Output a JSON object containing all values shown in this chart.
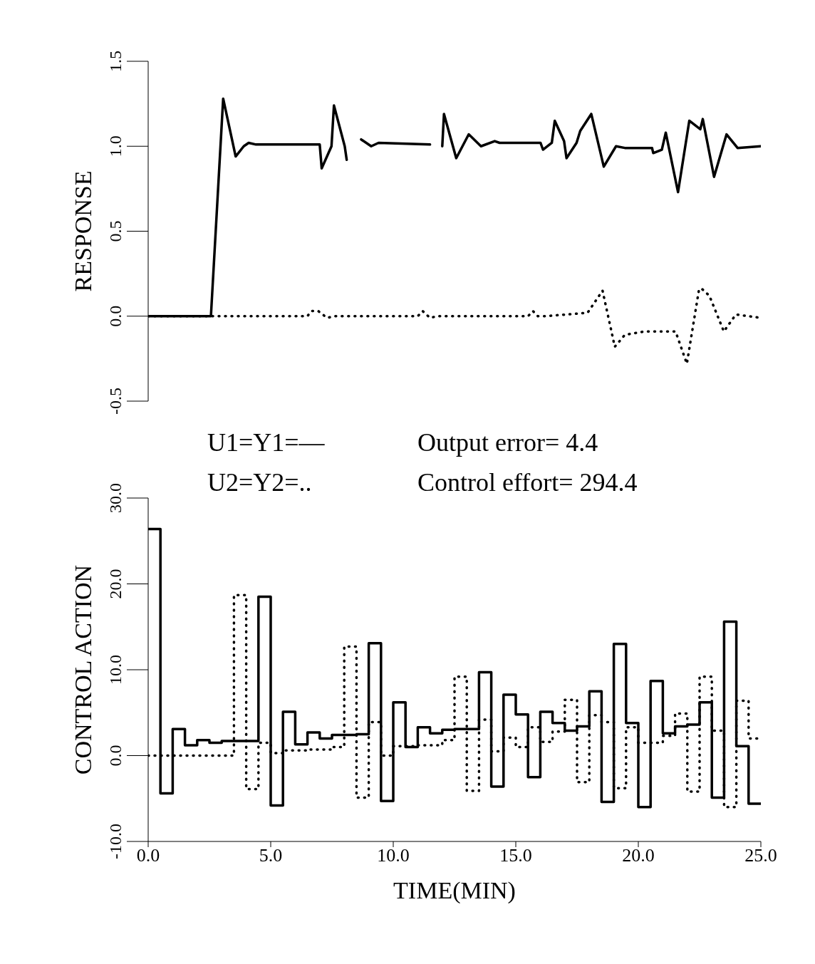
{
  "chart_data": [
    {
      "type": "line",
      "ylabel": "RESPONSE",
      "xlim": [
        0,
        25
      ],
      "ylim": [
        -0.5,
        1.5
      ],
      "yticks": [
        {
          "value": -0.5,
          "label": "-0.5"
        },
        {
          "value": 0,
          "label": "0.0"
        },
        {
          "value": 0.5,
          "label": "0.5"
        },
        {
          "value": 1,
          "label": "1.0"
        },
        {
          "value": 1.5,
          "label": "1.5"
        }
      ],
      "tick_labels": "y",
      "marker": "none",
      "series": [
        {
          "color": "#000000",
          "line_style": "solid",
          "x": [
            0,
            2.56,
            3.06,
            3.57,
            3.9,
            4.1,
            4.4,
            7.0,
            7.08,
            7.48,
            7.58,
            8.02,
            8.1,
            8.4,
            8.69,
            9.1,
            9.4,
            11.5,
            11.8,
            12.0,
            12.07,
            12.57,
            13.08,
            13.58,
            14.14,
            14.34,
            16.01,
            16.11,
            16.47,
            16.59,
            16.97,
            17.07,
            17.48,
            17.63,
            18.08,
            18.59,
            19.09,
            19.45,
            20.56,
            20.61,
            20.96,
            21.12,
            21.62,
            22.08,
            22.53,
            22.63,
            23.09,
            23.6,
            24.05,
            25.0
          ],
          "values": [
            0,
            0,
            1.28,
            0.94,
            1.0,
            1.02,
            1.01,
            1.01,
            0.87,
            1.0,
            1.24,
            1.0,
            0.92,
            null,
            1.04,
            1.0,
            1.02,
            1.01,
            null,
            1.0,
            1.19,
            0.93,
            1.07,
            1.0,
            1.03,
            1.02,
            1.02,
            0.98,
            1.02,
            1.15,
            1.03,
            0.93,
            1.02,
            1.09,
            1.19,
            0.88,
            1.0,
            0.99,
            0.99,
            0.96,
            0.98,
            1.08,
            0.73,
            1.15,
            1.1,
            1.16,
            0.82,
            1.07,
            0.99,
            1.0
          ]
        },
        {
          "color": "#000000",
          "line_style": "dotted",
          "x": [
            0,
            6.5,
            6.65,
            6.94,
            7.3,
            7.6,
            11.0,
            11.2,
            11.5,
            11.8,
            15.5,
            15.7,
            15.9,
            16.2,
            17.93,
            18.54,
            19.04,
            19.45,
            20.26,
            21.52,
            21.98,
            22.48,
            22.6,
            22.9,
            23.49,
            23.98,
            25.0
          ],
          "values": [
            0,
            0,
            0.03,
            0.03,
            -0.01,
            0,
            0,
            0.03,
            -0.01,
            0,
            0,
            0.03,
            0,
            0,
            0.02,
            0.15,
            -0.18,
            -0.11,
            -0.09,
            -0.09,
            -0.28,
            0.16,
            0.16,
            0.12,
            -0.09,
            0.01,
            -0.01
          ]
        }
      ]
    },
    {
      "type": "step",
      "ylabel": "CONTROL ACTION",
      "xlabel": "TIME(MIN)",
      "xlim": [
        0,
        25
      ],
      "xticks": [
        {
          "value": 0,
          "label": "0.0"
        },
        {
          "value": 5,
          "label": "5.0"
        },
        {
          "value": 10,
          "label": "10.0"
        },
        {
          "value": 15,
          "label": "15.0"
        },
        {
          "value": 20,
          "label": "20.0"
        },
        {
          "value": 25,
          "label": "25.0"
        }
      ],
      "ylim": [
        -10,
        30
      ],
      "yticks": [
        {
          "value": -10,
          "label": "-10.0"
        },
        {
          "value": 0,
          "label": "0.0"
        },
        {
          "value": 10,
          "label": "10.0"
        },
        {
          "value": 20,
          "label": "20.0"
        },
        {
          "value": 30,
          "label": "30.0"
        }
      ],
      "marker": "none",
      "annotations": [
        "U1=Y1=—",
        "Output error= 4.4",
        "U2=Y2=..",
        "Control effort= 294.4"
      ],
      "x": [
        0,
        0.5,
        1,
        1.5,
        2,
        2.5,
        3,
        3.5,
        4,
        4.5,
        5,
        5.5,
        6,
        6.5,
        7,
        7.5,
        8,
        8.5,
        9,
        9.5,
        10,
        10.5,
        11,
        11.5,
        12,
        12.5,
        13,
        13.5,
        14,
        14.5,
        15,
        15.5,
        16,
        16.5,
        17,
        17.5,
        18,
        18.5,
        19,
        19.5,
        20,
        20.5,
        21,
        21.5,
        22,
        22.5,
        23,
        23.5,
        24,
        24.5,
        25
      ],
      "series": [
        {
          "color": "#000000",
          "line_style": "solid",
          "values": [
            26.4,
            -4.4,
            3.1,
            1.2,
            1.8,
            1.5,
            1.7,
            1.7,
            1.7,
            18.5,
            -5.8,
            5.1,
            1.3,
            2.7,
            2.0,
            2.4,
            2.4,
            2.5,
            13.1,
            -5.3,
            6.2,
            1.0,
            3.3,
            2.6,
            3.0,
            3.1,
            3.1,
            9.7,
            -3.6,
            7.1,
            4.8,
            -2.5,
            5.1,
            3.8,
            2.9,
            3.4,
            7.5,
            -5.4,
            13.0,
            3.8,
            -6.0,
            8.7,
            2.6,
            3.4,
            3.6,
            6.2,
            -4.9,
            15.6,
            1.1,
            -5.6,
            -5.6
          ]
        },
        {
          "color": "#000000",
          "line_style": "dotted",
          "values": [
            0,
            0,
            0,
            0,
            0,
            0,
            0,
            18.7,
            -3.9,
            1.5,
            0.3,
            0.6,
            0.6,
            0.7,
            0.7,
            1.0,
            12.7,
            -4.9,
            3.9,
            0,
            1.1,
            1.1,
            1.2,
            1.2,
            1.8,
            9.2,
            -4.1,
            4.2,
            0.5,
            2.1,
            1.0,
            3.3,
            1.6,
            2.8,
            6.5,
            -3.1,
            4.7,
            3.9,
            -3.8,
            3.3,
            1.5,
            1.5,
            2.3,
            4.9,
            -4.2,
            9.2,
            2.9,
            -6.0,
            6.4,
            2.0,
            2.0
          ]
        }
      ]
    }
  ]
}
